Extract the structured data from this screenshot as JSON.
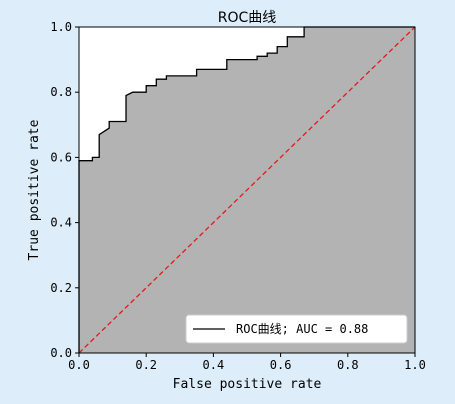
{
  "chart_data": {
    "type": "line",
    "title": "ROC曲线",
    "xlabel": "False positive rate",
    "ylabel": "True positive rate",
    "xlim": [
      0.0,
      1.0
    ],
    "ylim": [
      0.0,
      1.0
    ],
    "xticks": [
      "0.0",
      "0.2",
      "0.4",
      "0.6",
      "0.8",
      "1.0"
    ],
    "yticks": [
      "0.0",
      "0.2",
      "0.4",
      "0.6",
      "0.8",
      "1.0"
    ],
    "grid": false,
    "legend_position": "lower-right",
    "legend_label": "ROC曲线; AUC = 0.88",
    "series": [
      {
        "name": "ROC曲线; AUC = 0.88",
        "style": "solid",
        "color": "#000000",
        "fill_below": "#b3b3b3",
        "x": [
          0.0,
          0.0,
          0.04,
          0.04,
          0.06,
          0.06,
          0.09,
          0.09,
          0.14,
          0.14,
          0.16,
          0.16,
          0.2,
          0.2,
          0.21,
          0.21,
          0.23,
          0.23,
          0.26,
          0.26,
          0.28,
          0.35,
          0.35,
          0.44,
          0.44,
          0.53,
          0.53,
          0.56,
          0.56,
          0.59,
          0.59,
          0.62,
          0.62,
          0.67,
          0.67,
          1.0
        ],
        "y": [
          0.0,
          0.59,
          0.59,
          0.6,
          0.6,
          0.67,
          0.69,
          0.71,
          0.71,
          0.79,
          0.8,
          0.8,
          0.8,
          0.82,
          0.82,
          0.82,
          0.82,
          0.84,
          0.84,
          0.85,
          0.85,
          0.85,
          0.87,
          0.87,
          0.9,
          0.9,
          0.91,
          0.91,
          0.92,
          0.92,
          0.94,
          0.94,
          0.97,
          0.97,
          1.0,
          1.0
        ]
      },
      {
        "style": "dashed",
        "color": "#e41a1c",
        "x": [
          0.0,
          1.0
        ],
        "y": [
          0.0,
          1.0
        ]
      }
    ]
  }
}
